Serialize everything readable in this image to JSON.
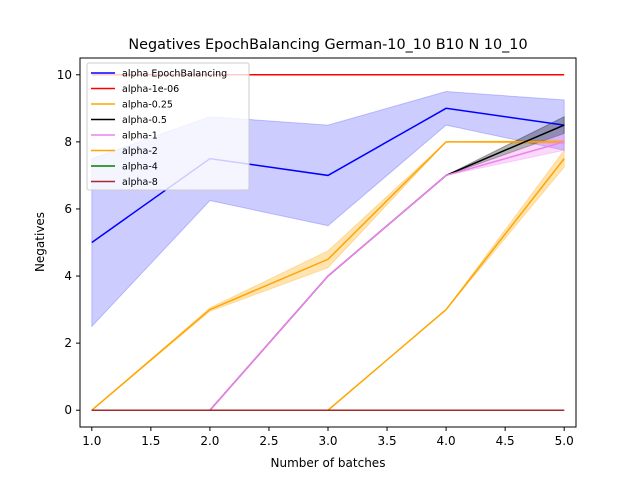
{
  "chart_data": {
    "type": "line",
    "title": "Negatives EpochBalancing German-10_10 B10 N 10_10",
    "xlabel": "Number of batches",
    "ylabel": "Negatives",
    "x": [
      1.0,
      2.0,
      3.0,
      4.0,
      5.0
    ],
    "xlim": [
      0.9,
      5.1
    ],
    "ylim": [
      -0.5,
      10.5
    ],
    "xticks": [
      1.0,
      1.5,
      2.0,
      2.5,
      3.0,
      3.5,
      4.0,
      4.5,
      5.0
    ],
    "xtick_labels": [
      "1.0",
      "1.5",
      "2.0",
      "2.5",
      "3.0",
      "3.5",
      "4.0",
      "4.5",
      "5.0"
    ],
    "yticks": [
      0,
      2,
      4,
      6,
      8,
      10
    ],
    "ytick_labels": [
      "0",
      "2",
      "4",
      "6",
      "8",
      "10"
    ],
    "legend_position": "top-left",
    "series": [
      {
        "name": "alpha EpochBalancing",
        "color": "#0000ff",
        "values": [
          5.0,
          7.5,
          7.0,
          9.0,
          8.5
        ],
        "band_low": [
          2.5,
          6.25,
          5.5,
          8.5,
          7.75
        ],
        "band_high": [
          7.5,
          8.75,
          8.5,
          9.5,
          9.25
        ],
        "band_color": "#0000ff",
        "band_opacity": 0.2
      },
      {
        "name": "alpha-1e-06",
        "color": "#ff0000",
        "values": [
          10,
          10,
          10,
          10,
          10
        ]
      },
      {
        "name": "alpha-0.25",
        "color": "#ffa500",
        "values": [
          0,
          3.0,
          4.5,
          8.0,
          8.0
        ],
        "band_low": [
          0,
          2.95,
          4.25,
          8.0,
          7.95
        ],
        "band_high": [
          0,
          3.05,
          4.75,
          8.0,
          8.05
        ],
        "band_color": "#ffa500",
        "band_opacity": 0.3
      },
      {
        "name": "alpha-0.5",
        "color": "#000000",
        "values": [
          0,
          0,
          4.0,
          7.0,
          8.5
        ],
        "band_low": [
          0,
          0,
          4.0,
          7.0,
          8.25
        ],
        "band_high": [
          0,
          0,
          4.0,
          7.0,
          8.75
        ],
        "band_color": "#000000",
        "band_opacity": 0.3
      },
      {
        "name": "alpha-1",
        "color": "#ee82ee",
        "values": [
          0,
          0,
          4.0,
          7.0,
          8.0
        ],
        "band_low": [
          0,
          0,
          4.0,
          7.0,
          7.75
        ],
        "band_high": [
          0,
          0,
          4.0,
          7.0,
          8.25
        ],
        "band_color": "#ee82ee",
        "band_opacity": 0.3
      },
      {
        "name": "alpha-2",
        "color": "#ffa500",
        "values": [
          0,
          0,
          0,
          3.0,
          7.5
        ],
        "band_low": [
          0,
          0,
          0,
          3.0,
          7.25
        ],
        "band_high": [
          0,
          0,
          0,
          3.0,
          7.75
        ],
        "band_color": "#ffa500",
        "band_opacity": 0.3
      },
      {
        "name": "alpha-4",
        "color": "#008000",
        "values": [
          0,
          0,
          0,
          0,
          0
        ]
      },
      {
        "name": "alpha-8",
        "color": "#a52a2a",
        "values": [
          0,
          0,
          0,
          0,
          0
        ]
      }
    ]
  }
}
